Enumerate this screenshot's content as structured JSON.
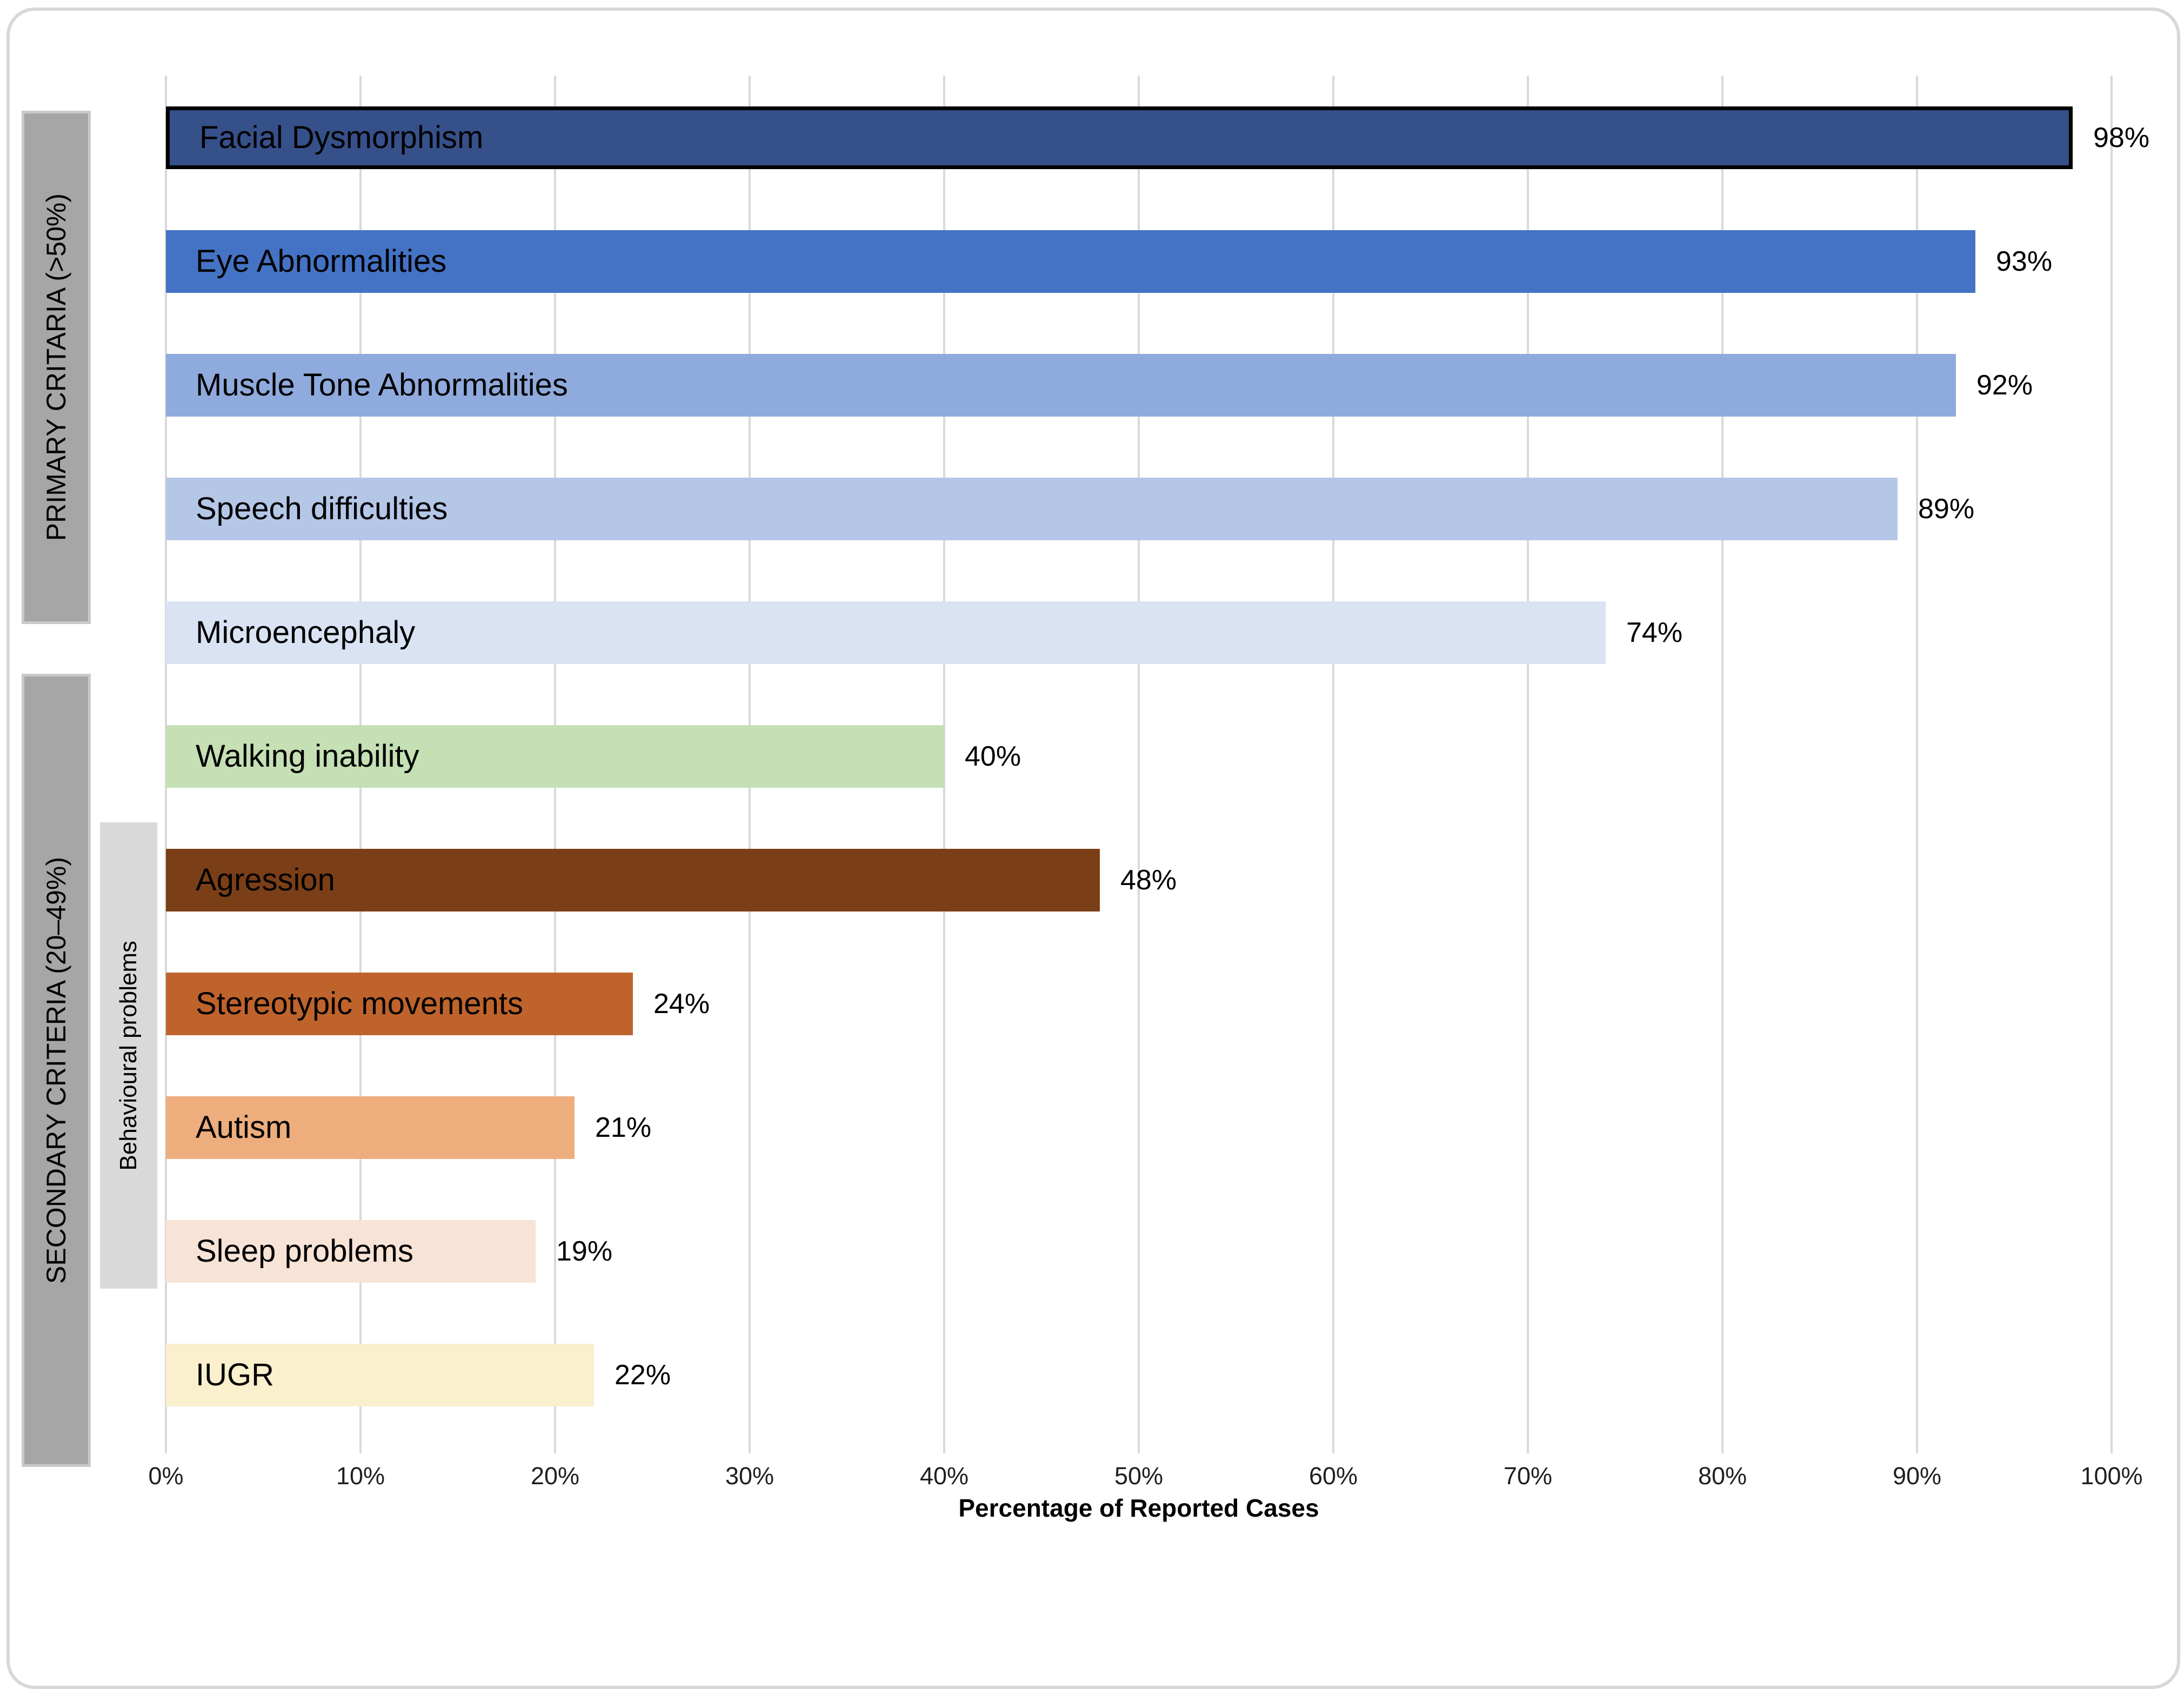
{
  "chart_data": {
    "type": "bar",
    "orientation": "horizontal",
    "xlabel": "Percentage of Reported Cases",
    "xlim": [
      0,
      100
    ],
    "grid": "vertical-only",
    "gridline_color": "#d9d9d9",
    "x_ticks": [
      "0%",
      "10%",
      "20%",
      "30%",
      "40%",
      "50%",
      "60%",
      "70%",
      "80%",
      "90%",
      "100%"
    ],
    "categories": [
      "Facial Dysmorphism",
      "Eye Abnormalities",
      "Muscle Tone Abnormalities",
      "Speech difficulties",
      "Microencephaly",
      "Walking inability",
      "Agression",
      "Stereotypic movements",
      "Autism",
      "Sleep problems",
      "IUGR"
    ],
    "values": [
      98,
      93,
      92,
      89,
      74,
      40,
      48,
      24,
      21,
      19,
      22
    ],
    "value_labels": [
      "98%",
      "93%",
      "92%",
      "89%",
      "74%",
      "40%",
      "48%",
      "24%",
      "21%",
      "19%",
      "22%"
    ],
    "bar_colors": [
      "#36508a",
      "#4472c4",
      "#8faadc",
      "#b4c7e7",
      "#dae3f3",
      "#c5e0b4",
      "#7b3f17",
      "#bf632c",
      "#edad7d",
      "#f7e4d7",
      "#faf0cd"
    ],
    "bar_border_colors": [
      "#000000",
      null,
      null,
      null,
      null,
      null,
      null,
      null,
      null,
      null,
      null
    ],
    "groups": [
      {
        "label": "PRIMARY CRITARIA (>50%)",
        "color": "#a6a6a6"
      },
      {
        "label": "SECONDARY CRITERIA (20–49%)",
        "color": "#a6a6a6"
      },
      {
        "label": "Behavioural problems",
        "color": "#d9d9d9"
      }
    ]
  }
}
